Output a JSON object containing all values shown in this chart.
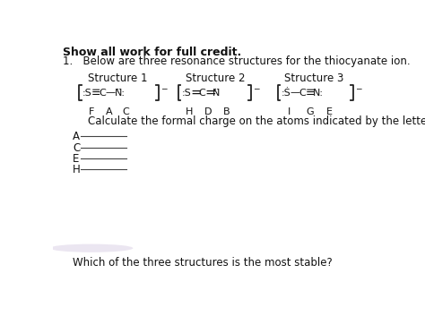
{
  "bg_color": "#ffffff",
  "title_bold": "Show all work for full credit.",
  "line1": "1.   Below are three resonance structures for the thiocyanate ion.",
  "struct_label1": "Structure 1",
  "struct_label2": "Structure 2",
  "struct_label3": "Structure 3",
  "letters1": [
    "F",
    "A",
    "C"
  ],
  "letters2": [
    "H",
    "D",
    "B"
  ],
  "letters3": [
    "I",
    "G",
    "E"
  ],
  "calc_text": "Calculate the formal charge on the atoms indicated by the letters below.",
  "fill_lines": [
    "A",
    "C",
    "E",
    "H"
  ],
  "final_q": "Which of the three structures is the most stable?",
  "fs_title": 9.0,
  "fs_body": 8.5,
  "fs_struct": 8.0,
  "fs_letter": 8.0
}
